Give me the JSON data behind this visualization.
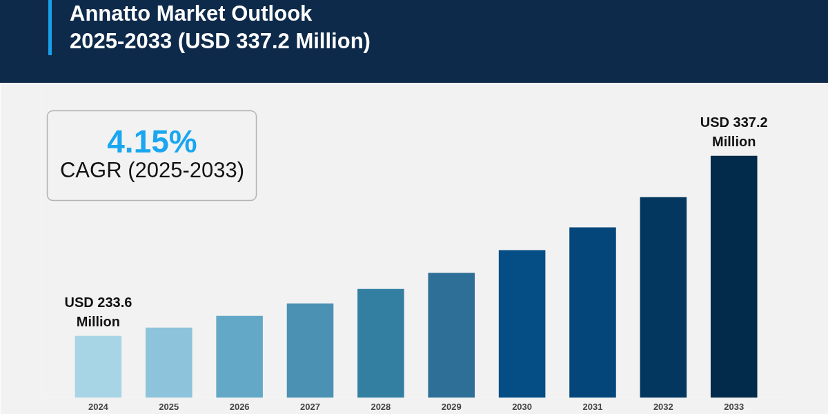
{
  "chart_data": {
    "type": "bar",
    "title": "Annatto Market Outlook\n2025-2033 (USD 337.2 Million)",
    "annotations": [
      "4.15%",
      "CAGR (2025-2033)"
    ],
    "categories": [
      "2024",
      "2025",
      "2026",
      "2027",
      "2028",
      "2029",
      "2030",
      "2031",
      "2032",
      "2033"
    ],
    "ylim": [
      198,
      379
    ],
    "tick_labels": "x",
    "values": [
      233.6,
      238.4,
      245.1,
      252.3,
      260.6,
      269.8,
      282.9,
      296.0,
      313.4,
      337.2
    ],
    "colors": [
      "#a8d5e6",
      "#8ec4db",
      "#63a8c6",
      "#4a91b3",
      "#337fa2",
      "#2d6f96",
      "#054d85",
      "#05467a",
      "#03375f",
      "#022a4a"
    ],
    "value_labels": [
      "USD 233.6\nMillion",
      null,
      null,
      null,
      null,
      null,
      null,
      null,
      null,
      "USD 337.2\nMillion"
    ],
    "grid": false
  }
}
